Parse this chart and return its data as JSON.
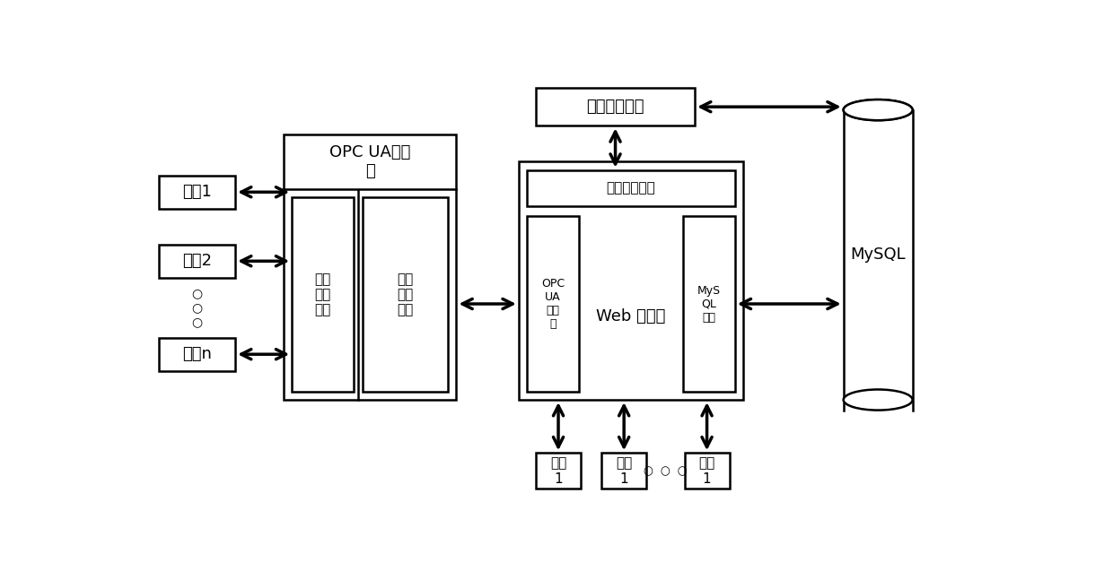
{
  "bg_color": "#ffffff",
  "line_color": "#000000",
  "text_color": "#000000",
  "fn": 11,
  "fn_sm": 9,
  "fn_lg": 13,
  "opc_server_label": "OPC UA服务\n器",
  "data_collect_label": "数据\n采集\n模块",
  "data_convert_label": "数据\n转换\n模块",
  "web_server_label": "Web 服务器",
  "opc_client_label": "OPC\nUA\n客户\n端",
  "mysql_interface_label": "MyS\nQL\n接口",
  "auth_module_label": "用户认证模块",
  "auth_interface_label": "认证模块接口",
  "mysql_label": "MySQL",
  "device_labels": [
    "设备1",
    "设备2",
    "设备n"
  ],
  "user_labels": [
    "用户\n1",
    "用户\n1",
    "用户\n1"
  ],
  "dots_v": "○\n○\n○",
  "dots_h": "○  ○  ○"
}
